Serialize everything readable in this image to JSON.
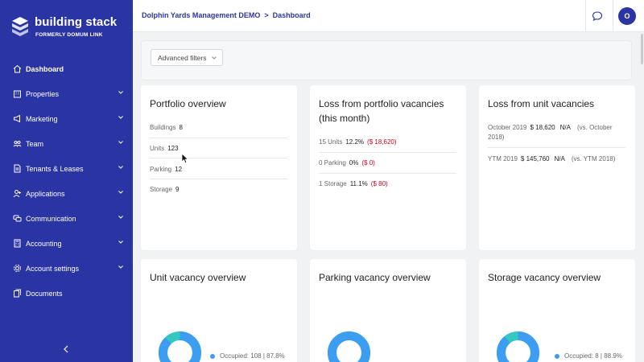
{
  "colors": {
    "sidebar_bg": "#2a35a3",
    "accent": "#2a35a3",
    "negative": "#d0021b",
    "donut_primary": "#3d9df0",
    "donut_secondary": "#35c7c1"
  },
  "brand": {
    "name": "building stack",
    "tagline": "FORMERLY DOMUM LINK",
    "logo_icon": "stacked-cube-logo"
  },
  "nav": {
    "items": [
      {
        "label": "Dashboard",
        "icon": "home-icon",
        "active": true,
        "expandable": false
      },
      {
        "label": "Properties",
        "icon": "building-icon",
        "active": false,
        "expandable": true
      },
      {
        "label": "Marketing",
        "icon": "megaphone-icon",
        "active": false,
        "expandable": true
      },
      {
        "label": "Team",
        "icon": "team-icon",
        "active": false,
        "expandable": true
      },
      {
        "label": "Tenants & Leases",
        "icon": "document-icon",
        "active": false,
        "expandable": true
      },
      {
        "label": "Applications",
        "icon": "user-add-icon",
        "active": false,
        "expandable": true
      },
      {
        "label": "Communication",
        "icon": "chat-icon",
        "active": false,
        "expandable": true
      },
      {
        "label": "Accounting",
        "icon": "calculator-icon",
        "active": false,
        "expandable": true
      },
      {
        "label": "Account settings",
        "icon": "gear-icon",
        "active": false,
        "expandable": true
      },
      {
        "label": "Documents",
        "icon": "documents-icon",
        "active": false,
        "expandable": false
      }
    ],
    "collapse_icon": "chevron-left-icon"
  },
  "header": {
    "breadcrumb_root": "Dolphin Yards Management DEMO",
    "breadcrumb_sep": ">",
    "breadcrumb_current": "Dashboard",
    "avatar_initial": "O"
  },
  "filters": {
    "label": "Advanced filters"
  },
  "cards": {
    "portfolio": {
      "title": "Portfolio overview",
      "rows": [
        {
          "label": "Buildings",
          "value": "8"
        },
        {
          "label": "Units",
          "value": "123"
        },
        {
          "label": "Parking",
          "value": "12"
        },
        {
          "label": "Storage",
          "value": "9"
        }
      ]
    },
    "portfolio_loss": {
      "title_line1": "Loss from portfolio vacancies",
      "title_line2": "(this month)",
      "rows": [
        {
          "label": "15 Units",
          "pct": "12.2%",
          "amount": "($ 18,620)"
        },
        {
          "label": "0 Parking",
          "pct": "0%",
          "amount": "($ 0)"
        },
        {
          "label": "1 Storage",
          "pct": "11.1%",
          "amount": "($ 80)"
        }
      ]
    },
    "unit_loss": {
      "title": "Loss from unit vacancies",
      "rows": [
        {
          "period": "October 2019",
          "amount": "$ 18,620",
          "change": "N/A",
          "compare_line1": "(vs. October",
          "compare_line2": "2018)"
        },
        {
          "period": "YTM 2019",
          "amount": "$ 145,760",
          "change": "N/A",
          "compare_line1": "(vs. YTM 2018)",
          "compare_line2": ""
        }
      ]
    },
    "unit_vacancy": {
      "title": "Unit vacancy overview",
      "legend": "Occupied: 108 | 87.8%",
      "occupied_fraction": 0.878
    },
    "parking_vacancy": {
      "title": "Parking vacancy overview",
      "occupied_fraction": 1.0
    },
    "storage_vacancy": {
      "title": "Storage vacancy overview",
      "legend": "Occupied: 8 | 88.9%",
      "occupied_fraction": 0.889
    }
  }
}
